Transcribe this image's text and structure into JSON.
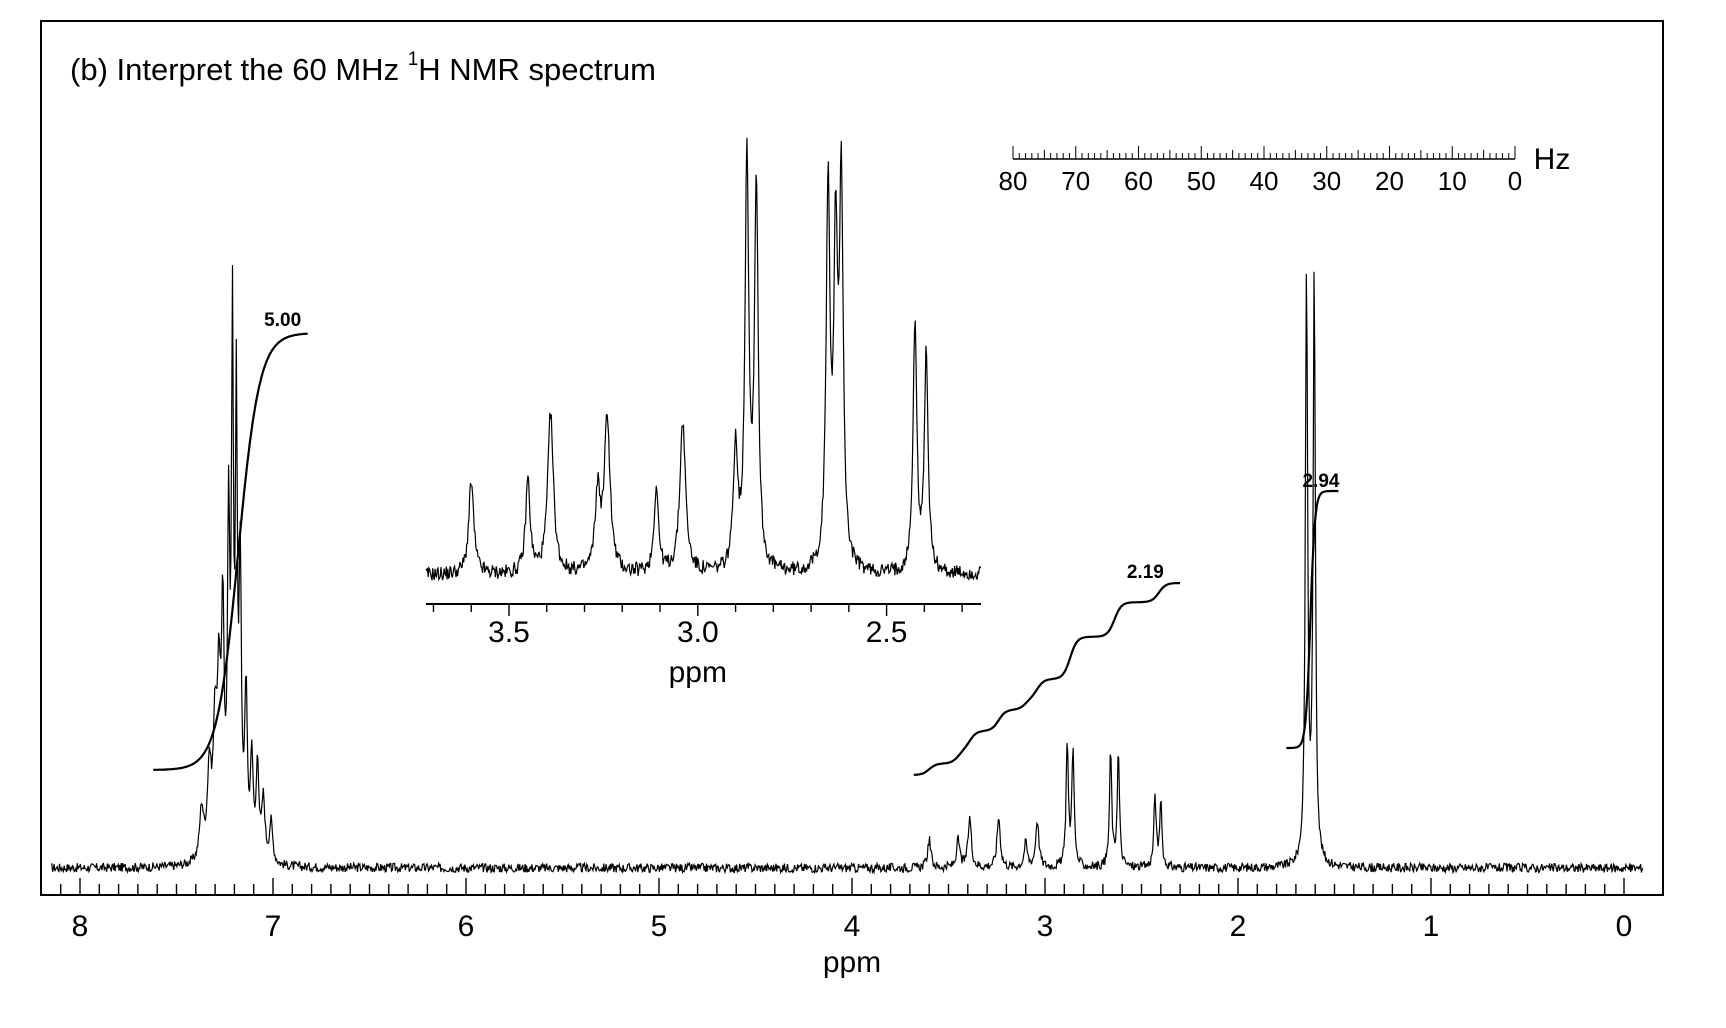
{
  "title": {
    "prefix": "(b)  Interpret the 60 MHz ",
    "superscript": "1",
    "suffix": "H NMR spectrum"
  },
  "chart_data": [
    {
      "type": "line",
      "name": "main spectrum",
      "xlabel": "ppm",
      "ylabel": "",
      "xlim": [
        8.15,
        -0.1
      ],
      "x_reversed": true,
      "x_ticks": [
        8,
        7,
        6,
        5,
        4,
        3,
        2,
        1,
        0
      ],
      "x_tick_labels": [
        "8",
        "7",
        "6",
        "5",
        "4",
        "3",
        "2",
        "1",
        "0"
      ],
      "peaks": [
        {
          "ppm": 7.37,
          "height": 0.1,
          "width": 0.012
        },
        {
          "ppm": 7.33,
          "height": 0.17,
          "width": 0.012
        },
        {
          "ppm": 7.3,
          "height": 0.24,
          "width": 0.012
        },
        {
          "ppm": 7.28,
          "height": 0.3,
          "width": 0.01
        },
        {
          "ppm": 7.26,
          "height": 0.45,
          "width": 0.008
        },
        {
          "ppm": 7.23,
          "height": 0.62,
          "width": 0.007
        },
        {
          "ppm": 7.21,
          "height": 1.0,
          "width": 0.006
        },
        {
          "ppm": 7.19,
          "height": 0.85,
          "width": 0.006
        },
        {
          "ppm": 7.17,
          "height": 0.55,
          "width": 0.007
        },
        {
          "ppm": 7.14,
          "height": 0.32,
          "width": 0.008
        },
        {
          "ppm": 7.11,
          "height": 0.2,
          "width": 0.008
        },
        {
          "ppm": 7.08,
          "height": 0.19,
          "width": 0.008
        },
        {
          "ppm": 7.05,
          "height": 0.12,
          "width": 0.01
        },
        {
          "ppm": 7.01,
          "height": 0.08,
          "width": 0.01
        },
        {
          "ppm": 3.6,
          "height": 0.055,
          "width": 0.01
        },
        {
          "ppm": 3.45,
          "height": 0.053,
          "width": 0.01
        },
        {
          "ppm": 3.39,
          "height": 0.098,
          "width": 0.01
        },
        {
          "ppm": 3.24,
          "height": 0.1,
          "width": 0.01
        },
        {
          "ppm": 3.1,
          "height": 0.047,
          "width": 0.01
        },
        {
          "ppm": 3.04,
          "height": 0.093,
          "width": 0.01
        },
        {
          "ppm": 2.885,
          "height": 0.245,
          "width": 0.007
        },
        {
          "ppm": 2.855,
          "height": 0.235,
          "width": 0.007
        },
        {
          "ppm": 2.66,
          "height": 0.225,
          "width": 0.007
        },
        {
          "ppm": 2.62,
          "height": 0.225,
          "width": 0.007
        },
        {
          "ppm": 2.43,
          "height": 0.14,
          "width": 0.007
        },
        {
          "ppm": 2.4,
          "height": 0.125,
          "width": 0.007
        },
        {
          "ppm": 1.645,
          "height": 1.16,
          "width": 0.007
        },
        {
          "ppm": 1.605,
          "height": 1.15,
          "width": 0.007
        }
      ],
      "integrals": [
        {
          "label": "5.00",
          "from_ppm": 7.62,
          "to_ppm": 6.82,
          "center_ppm": 7.18
        },
        {
          "label": "2.19",
          "from_ppm": 3.68,
          "to_ppm": 2.3,
          "steps_ppm": [
            3.6,
            3.45,
            3.39,
            3.24,
            3.1,
            3.04,
            2.87,
            2.64,
            2.41
          ]
        },
        {
          "label": "2.94",
          "from_ppm": 1.75,
          "to_ppm": 1.48,
          "center_ppm": 1.625
        }
      ]
    },
    {
      "type": "line",
      "name": "inset expansion",
      "xlabel": "ppm",
      "ylabel": "",
      "xlim": [
        3.72,
        2.25
      ],
      "x_reversed": true,
      "x_ticks": [
        3.5,
        3.0,
        2.5
      ],
      "x_tick_labels": [
        "3.5",
        "3.0",
        "2.5"
      ],
      "peaks": [
        {
          "ppm": 3.6,
          "height": 0.225,
          "width": 0.008
        },
        {
          "ppm": 3.45,
          "height": 0.23,
          "width": 0.007
        },
        {
          "ppm": 3.39,
          "height": 0.39,
          "width": 0.009
        },
        {
          "ppm": 3.265,
          "height": 0.19,
          "width": 0.008
        },
        {
          "ppm": 3.24,
          "height": 0.38,
          "width": 0.009
        },
        {
          "ppm": 3.11,
          "height": 0.21,
          "width": 0.007
        },
        {
          "ppm": 3.04,
          "height": 0.37,
          "width": 0.009
        },
        {
          "ppm": 2.9,
          "height": 0.3,
          "width": 0.007
        },
        {
          "ppm": 2.87,
          "height": 1.0,
          "width": 0.006
        },
        {
          "ppm": 2.845,
          "height": 0.93,
          "width": 0.006
        },
        {
          "ppm": 2.655,
          "height": 0.92,
          "width": 0.006
        },
        {
          "ppm": 2.635,
          "height": 0.74,
          "width": 0.006
        },
        {
          "ppm": 2.62,
          "height": 0.93,
          "width": 0.006
        },
        {
          "ppm": 2.425,
          "height": 0.6,
          "width": 0.006
        },
        {
          "ppm": 2.395,
          "height": 0.53,
          "width": 0.006
        }
      ]
    },
    {
      "type": "scale",
      "name": "frequency scale",
      "unit": "Hz",
      "xlim": [
        80,
        0
      ],
      "x_ticks": [
        80,
        70,
        60,
        50,
        40,
        30,
        20,
        10,
        0
      ],
      "x_tick_labels": [
        "80",
        "70",
        "60",
        "50",
        "40",
        "30",
        "20",
        "10",
        "0"
      ],
      "minor_step": 1
    }
  ]
}
